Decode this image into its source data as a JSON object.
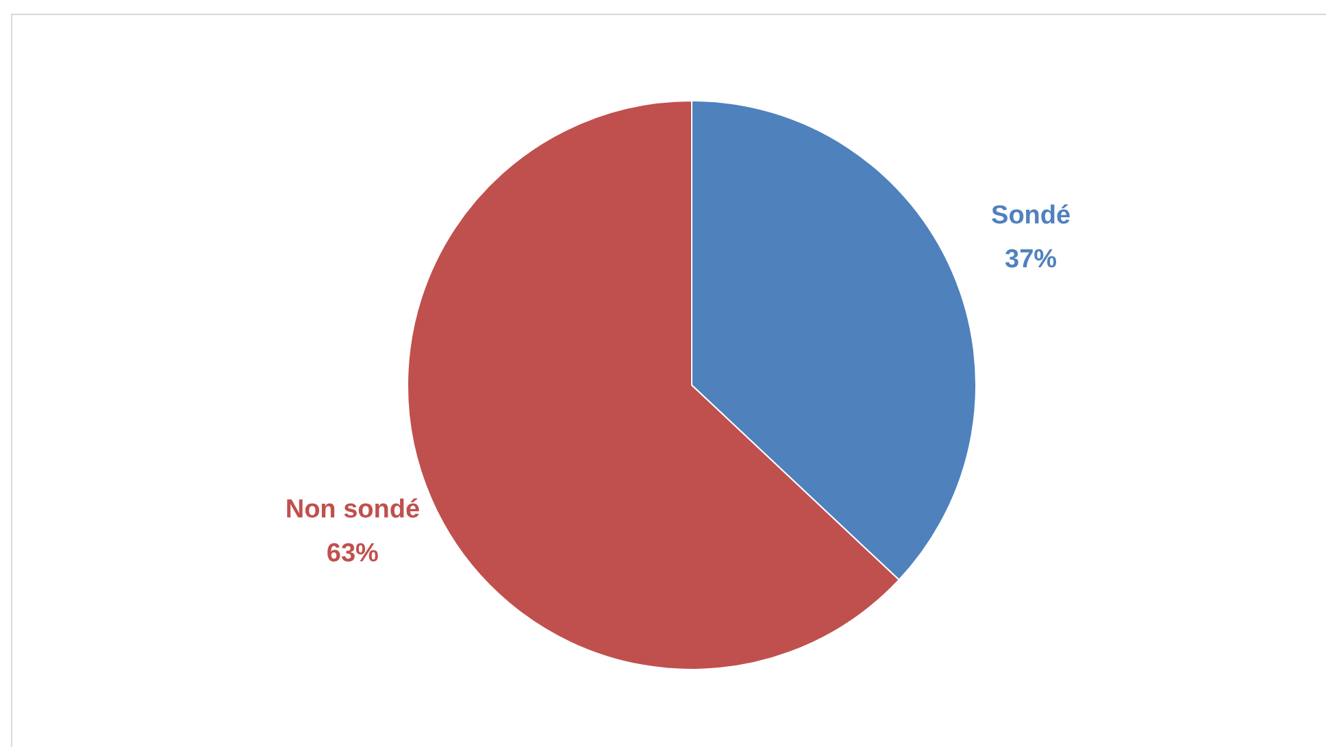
{
  "chart_data": {
    "type": "pie",
    "categories": [
      "Sondé",
      "Non sondé"
    ],
    "values": [
      37,
      63
    ],
    "colors": [
      "#4f81bd",
      "#c0504d"
    ],
    "value_labels": [
      "37%",
      "63%"
    ],
    "legend": false
  }
}
